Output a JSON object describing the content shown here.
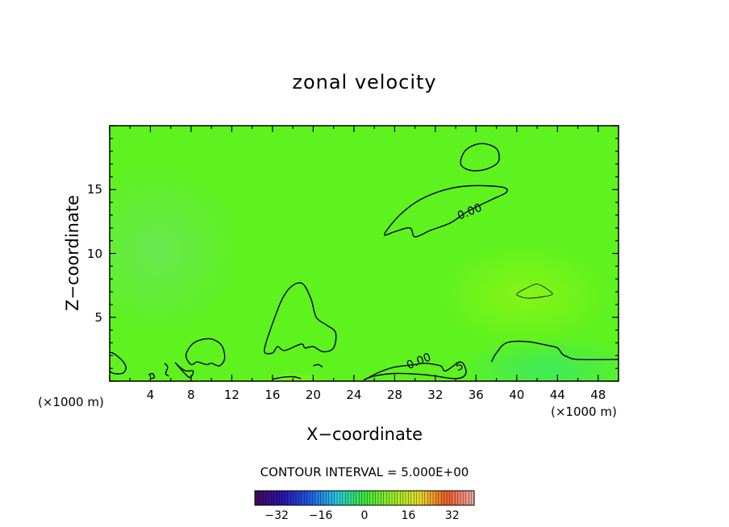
{
  "chart_data": {
    "type": "heatmap",
    "title": "zonal velocity",
    "xlabel": "X−coordinate",
    "ylabel": "Z−coordinate",
    "x_unit_left": "(×1000 m)",
    "x_unit_right": "(×1000 m)",
    "xlim": [
      0,
      50
    ],
    "ylim": [
      0,
      20
    ],
    "x_ticks": [
      4,
      8,
      12,
      16,
      20,
      24,
      28,
      32,
      36,
      40,
      44,
      48
    ],
    "x_tick_labels": [
      "4",
      "8",
      "12",
      "16",
      "20",
      "24",
      "28",
      "32",
      "36",
      "40",
      "44",
      "48"
    ],
    "y_ticks": [
      5,
      10,
      15
    ],
    "y_tick_labels": [
      "5",
      "10",
      "15"
    ],
    "contour_interval_text": "CONTOUR INTERVAL = 5.000E+00",
    "contour_labels": [
      {
        "text": "0.00",
        "x": 35.5,
        "y": 13.0
      },
      {
        "text": "0.00",
        "x": 30.5,
        "y": 1.3
      },
      {
        "text": "5",
        "x": 34.5,
        "y": 0.9
      }
    ],
    "colorbar": {
      "range": [
        -40,
        40
      ],
      "ticks": [
        -32,
        -16,
        0,
        16,
        32
      ],
      "tick_labels": [
        "−32",
        "−16",
        "0",
        "16",
        "32"
      ]
    },
    "background_value": 0,
    "field_features": [
      {
        "x": 3,
        "y": 10,
        "value": -2
      },
      {
        "x": 41,
        "y": 7,
        "value": 4
      },
      {
        "x": 43,
        "y": 1,
        "value": -2
      },
      {
        "x": 18,
        "y": 0.5,
        "value": 5
      }
    ],
    "zero_contours": [
      [
        [
          34.5,
          17
        ],
        [
          35,
          18.1
        ],
        [
          36.5,
          18.6
        ],
        [
          38,
          18.2
        ],
        [
          38.2,
          17.2
        ],
        [
          37,
          16.6
        ],
        [
          35.5,
          16.5
        ]
      ],
      [
        [
          27,
          11.5
        ],
        [
          28.5,
          13
        ],
        [
          30.5,
          14.2
        ],
        [
          33,
          15
        ],
        [
          35.5,
          15.3
        ],
        [
          38.5,
          15.2
        ],
        [
          39,
          14.8
        ],
        [
          37.5,
          14.2
        ],
        [
          35.2,
          13.3
        ],
        [
          33.5,
          12.4
        ],
        [
          31.5,
          11.8
        ],
        [
          30,
          11.3
        ],
        [
          29.5,
          12
        ],
        [
          28,
          11.7
        ]
      ],
      [
        [
          15.2,
          2.4
        ],
        [
          16,
          4.5
        ],
        [
          17,
          6.5
        ],
        [
          18,
          7.5
        ],
        [
          19,
          7.6
        ],
        [
          19.8,
          6.4
        ],
        [
          20.3,
          5
        ],
        [
          21.3,
          4.4
        ],
        [
          22.2,
          3.8
        ],
        [
          22,
          2.6
        ],
        [
          21,
          2.3
        ],
        [
          20,
          2.7
        ],
        [
          19.2,
          2.6
        ],
        [
          18.8,
          2.9
        ],
        [
          17.2,
          2.4
        ],
        [
          16.5,
          2.7
        ],
        [
          16,
          2.2
        ]
      ],
      [
        [
          7.5,
          2
        ],
        [
          8,
          2.8
        ],
        [
          8.8,
          3.2
        ],
        [
          10,
          3.3
        ],
        [
          11,
          2.8
        ],
        [
          11.3,
          1.8
        ],
        [
          10.8,
          1.2
        ],
        [
          10,
          1.4
        ],
        [
          9.5,
          1.3
        ],
        [
          8.6,
          1.5
        ],
        [
          8,
          1.3
        ]
      ],
      [
        [
          0,
          2.2
        ],
        [
          1,
          1.8
        ],
        [
          1.6,
          1.1
        ],
        [
          1.2,
          0.6
        ],
        [
          0,
          0.8
        ]
      ],
      [
        [
          5.4,
          1.4
        ],
        [
          5.7,
          1.1
        ],
        [
          5.5,
          0.6
        ],
        [
          5.8,
          0.4
        ]
      ],
      [
        [
          6.5,
          1.4
        ],
        [
          6.9,
          1.1
        ],
        [
          7.5,
          0.8
        ],
        [
          8.2,
          0.8
        ],
        [
          7.8,
          0.3
        ]
      ],
      [
        [
          25,
          0.1
        ],
        [
          25.5,
          0.3
        ],
        [
          26.5,
          0.7
        ],
        [
          28,
          1.1
        ],
        [
          30,
          1.3
        ],
        [
          31,
          1.4
        ],
        [
          32.5,
          1.2
        ],
        [
          33,
          0.8
        ],
        [
          34.5,
          1.5
        ],
        [
          35,
          0.6
        ],
        [
          34,
          0.2
        ],
        [
          31,
          0.5
        ],
        [
          28,
          0.6
        ],
        [
          26,
          0.4
        ]
      ],
      [
        [
          37.5,
          1.5
        ],
        [
          38,
          2.2
        ],
        [
          39,
          3
        ],
        [
          41,
          3.1
        ],
        [
          43,
          2.8
        ],
        [
          44,
          2.6
        ],
        [
          44.5,
          2.1
        ],
        [
          45,
          1.9
        ],
        [
          46,
          1.7
        ],
        [
          50,
          1.7
        ]
      ],
      [
        [
          3.8,
          0.5
        ],
        [
          4.2,
          0.6
        ],
        [
          4.4,
          0.3
        ],
        [
          4,
          0.2
        ]
      ],
      [
        [
          40,
          6.8
        ],
        [
          41,
          7.3
        ],
        [
          42,
          7.6
        ],
        [
          43,
          7.2
        ],
        [
          43.5,
          6.8
        ],
        [
          42.5,
          6.6
        ],
        [
          41,
          6.5
        ]
      ],
      [
        [
          16,
          0.15
        ],
        [
          17,
          0.3
        ],
        [
          18,
          0.35
        ],
        [
          18.8,
          0.2
        ]
      ],
      [
        [
          20,
          1.2
        ],
        [
          20.5,
          1.3
        ],
        [
          20.9,
          1.1
        ]
      ]
    ]
  }
}
